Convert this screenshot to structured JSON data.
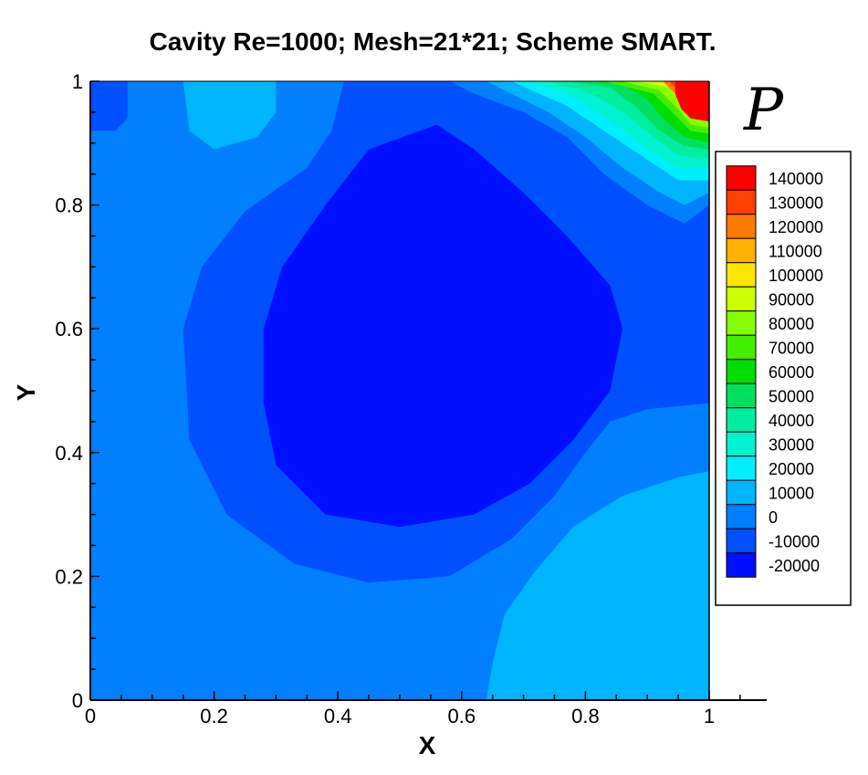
{
  "chart_data": {
    "type": "contour",
    "title": "Cavity Re=1000; Mesh=21*21; Scheme SMART.",
    "xlabel": "X",
    "ylabel": "Y",
    "variable": "P",
    "xlim": [
      0,
      1
    ],
    "ylim": [
      0,
      1
    ],
    "x_ticks": [
      "0",
      "0.2",
      "0.4",
      "0.6",
      "0.8",
      "1"
    ],
    "y_ticks": [
      "0",
      "0.2",
      "0.4",
      "0.6",
      "0.8",
      "1"
    ],
    "legend": {
      "levels": [
        140000,
        130000,
        120000,
        110000,
        100000,
        90000,
        80000,
        70000,
        60000,
        50000,
        40000,
        30000,
        20000,
        10000,
        0,
        -10000,
        -20000
      ],
      "labels": [
        "140000",
        "130000",
        "120000",
        "110000",
        "100000",
        "90000",
        "80000",
        "70000",
        "60000",
        "50000",
        "40000",
        "30000",
        "20000",
        "10000",
        "0",
        "-10000",
        "-20000"
      ],
      "colors": [
        "#ff0000",
        "#ff4000",
        "#ff7a00",
        "#ffb000",
        "#ffe600",
        "#ccff00",
        "#88ff00",
        "#44ee00",
        "#00dd00",
        "#00e060",
        "#00eea0",
        "#00f2d0",
        "#00eeff",
        "#00b4ff",
        "#0080ff",
        "#0050ff",
        "#0010ff"
      ]
    },
    "background_level": 0,
    "regions": [
      {
        "level": 10000,
        "points": [
          [
            0.64,
            0
          ],
          [
            1,
            0
          ],
          [
            1,
            0.37
          ],
          [
            0.95,
            0.36
          ],
          [
            0.86,
            0.33
          ],
          [
            0.78,
            0.28
          ],
          [
            0.72,
            0.21
          ],
          [
            0.67,
            0.14
          ],
          [
            0.65,
            0.06
          ]
        ]
      },
      {
        "level": 10000,
        "points": [
          [
            0.15,
            1
          ],
          [
            0.3,
            1
          ],
          [
            0.3,
            0.95
          ],
          [
            0.27,
            0.91
          ],
          [
            0.2,
            0.89
          ],
          [
            0.16,
            0.92
          ]
        ]
      },
      {
        "level": -10000,
        "points": [
          [
            0,
            1
          ],
          [
            0.06,
            1
          ],
          [
            0.06,
            0.94
          ],
          [
            0.04,
            0.92
          ],
          [
            0,
            0.92
          ]
        ]
      },
      {
        "level": -10000,
        "points": [
          [
            0.41,
            1
          ],
          [
            0.72,
            1
          ],
          [
            0.79,
            0.94
          ],
          [
            0.89,
            0.85
          ],
          [
            0.96,
            0.8
          ],
          [
            1,
            0.8
          ],
          [
            1,
            0.48
          ],
          [
            0.9,
            0.47
          ],
          [
            0.84,
            0.45
          ],
          [
            0.8,
            0.4
          ],
          [
            0.75,
            0.33
          ],
          [
            0.68,
            0.26
          ],
          [
            0.58,
            0.2
          ],
          [
            0.45,
            0.19
          ],
          [
            0.33,
            0.22
          ],
          [
            0.22,
            0.3
          ],
          [
            0.16,
            0.42
          ],
          [
            0.15,
            0.6
          ],
          [
            0.18,
            0.7
          ],
          [
            0.25,
            0.79
          ],
          [
            0.35,
            0.86
          ],
          [
            0.39,
            0.92
          ]
        ]
      },
      {
        "level": -20000,
        "points": [
          [
            0.28,
            0.6
          ],
          [
            0.31,
            0.7
          ],
          [
            0.38,
            0.8
          ],
          [
            0.45,
            0.89
          ],
          [
            0.56,
            0.93
          ],
          [
            0.62,
            0.89
          ],
          [
            0.7,
            0.82
          ],
          [
            0.77,
            0.75
          ],
          [
            0.84,
            0.67
          ],
          [
            0.86,
            0.6
          ],
          [
            0.84,
            0.5
          ],
          [
            0.78,
            0.42
          ],
          [
            0.71,
            0.35
          ],
          [
            0.62,
            0.3
          ],
          [
            0.5,
            0.28
          ],
          [
            0.38,
            0.3
          ],
          [
            0.3,
            0.38
          ],
          [
            0.28,
            0.48
          ]
        ]
      },
      {
        "level": -20000,
        "points": [
          [
            0.38,
            0.55
          ],
          [
            0.4,
            0.63
          ],
          [
            0.44,
            0.7
          ],
          [
            0.51,
            0.74
          ],
          [
            0.58,
            0.73
          ],
          [
            0.64,
            0.7
          ],
          [
            0.69,
            0.64
          ],
          [
            0.71,
            0.56
          ],
          [
            0.69,
            0.47
          ],
          [
            0.63,
            0.4
          ],
          [
            0.54,
            0.36
          ],
          [
            0.45,
            0.38
          ],
          [
            0.4,
            0.45
          ]
        ]
      },
      {
        "level": 0,
        "points": [
          [
            0.58,
            1
          ],
          [
            1,
            1
          ],
          [
            1,
            0.8
          ],
          [
            0.96,
            0.77
          ],
          [
            0.9,
            0.8
          ],
          [
            0.83,
            0.85
          ],
          [
            0.77,
            0.91
          ],
          [
            0.7,
            0.95
          ],
          [
            0.62,
            0.98
          ]
        ]
      },
      {
        "level": 10000,
        "points": [
          [
            0.64,
            1
          ],
          [
            1,
            1
          ],
          [
            1,
            0.82
          ],
          [
            0.96,
            0.8
          ],
          [
            0.92,
            0.82
          ],
          [
            0.86,
            0.86
          ],
          [
            0.8,
            0.91
          ],
          [
            0.74,
            0.95
          ],
          [
            0.68,
            0.98
          ]
        ]
      },
      {
        "level": 20000,
        "points": [
          [
            0.68,
            1
          ],
          [
            1,
            1
          ],
          [
            1,
            0.84
          ],
          [
            0.95,
            0.84
          ],
          [
            0.89,
            0.88
          ],
          [
            0.83,
            0.92
          ],
          [
            0.77,
            0.96
          ]
        ]
      },
      {
        "level": 30000,
        "points": [
          [
            0.71,
            1
          ],
          [
            1,
            1
          ],
          [
            1,
            0.86
          ],
          [
            0.95,
            0.86
          ],
          [
            0.9,
            0.89
          ],
          [
            0.85,
            0.93
          ],
          [
            0.79,
            0.97
          ]
        ]
      },
      {
        "level": 40000,
        "points": [
          [
            0.74,
            1
          ],
          [
            1,
            1
          ],
          [
            1,
            0.875
          ],
          [
            0.95,
            0.88
          ],
          [
            0.91,
            0.91
          ],
          [
            0.86,
            0.95
          ],
          [
            0.81,
            0.98
          ]
        ]
      },
      {
        "level": 50000,
        "points": [
          [
            0.77,
            1
          ],
          [
            1,
            1
          ],
          [
            1,
            0.89
          ],
          [
            0.96,
            0.895
          ],
          [
            0.92,
            0.92
          ],
          [
            0.88,
            0.96
          ],
          [
            0.84,
            0.99
          ]
        ]
      },
      {
        "level": 60000,
        "points": [
          [
            0.8,
            1
          ],
          [
            1,
            1
          ],
          [
            1,
            0.9
          ],
          [
            0.96,
            0.91
          ],
          [
            0.93,
            0.935
          ],
          [
            0.9,
            0.97
          ],
          [
            0.86,
            0.995
          ]
        ]
      },
      {
        "level": 70000,
        "points": [
          [
            0.83,
            1
          ],
          [
            1,
            1
          ],
          [
            1,
            0.915
          ],
          [
            0.97,
            0.92
          ],
          [
            0.94,
            0.95
          ],
          [
            0.91,
            0.98
          ]
        ]
      },
      {
        "level": 80000,
        "points": [
          [
            0.86,
            1
          ],
          [
            1,
            1
          ],
          [
            1,
            0.925
          ],
          [
            0.97,
            0.93
          ],
          [
            0.95,
            0.955
          ],
          [
            0.92,
            0.985
          ]
        ]
      },
      {
        "level": 90000,
        "points": [
          [
            0.88,
            1
          ],
          [
            1,
            1
          ],
          [
            1,
            0.935
          ],
          [
            0.975,
            0.94
          ],
          [
            0.955,
            0.965
          ],
          [
            0.935,
            0.99
          ]
        ]
      },
      {
        "level": 100000,
        "points": [
          [
            0.9,
            1
          ],
          [
            1,
            1
          ],
          [
            1,
            0.945
          ],
          [
            0.975,
            0.95
          ],
          [
            0.96,
            0.97
          ],
          [
            0.945,
            0.995
          ]
        ]
      },
      {
        "level": 110000,
        "points": [
          [
            0.915,
            1
          ],
          [
            1,
            1
          ],
          [
            1,
            0.955
          ],
          [
            0.98,
            0.96
          ],
          [
            0.965,
            0.975
          ],
          [
            0.955,
            1
          ]
        ]
      },
      {
        "level": 120000,
        "points": [
          [
            0.925,
            1
          ],
          [
            1,
            1
          ],
          [
            1,
            0.96
          ],
          [
            0.98,
            0.965
          ],
          [
            0.955,
            0.97
          ]
        ]
      },
      {
        "level": 130000,
        "points": [
          [
            0.935,
            1
          ],
          [
            1,
            1
          ],
          [
            1,
            0.965
          ],
          [
            0.98,
            0.97
          ],
          [
            0.96,
            0.975
          ]
        ]
      },
      {
        "level": 140000,
        "points": [
          [
            0.945,
            1
          ],
          [
            1,
            1
          ],
          [
            1,
            0.935
          ],
          [
            0.97,
            0.94
          ],
          [
            0.955,
            0.955
          ],
          [
            0.945,
            0.98
          ]
        ]
      }
    ]
  }
}
